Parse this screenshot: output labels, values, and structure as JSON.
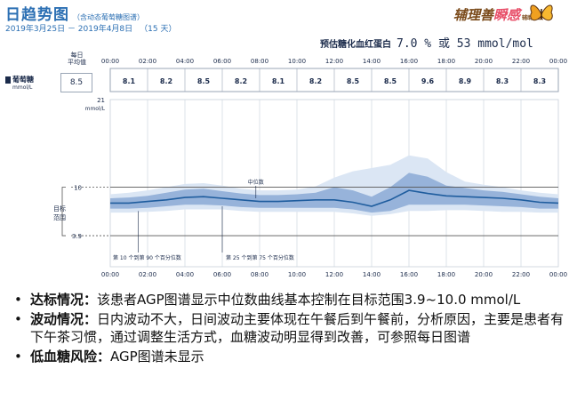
{
  "header": {
    "title": "日趋势图",
    "subtitle": "（含动态葡萄糖图谱）",
    "date_range": "2019年3月25日 － 2019年4月8日",
    "days": "（15 天）",
    "logo_text_a": "辅理善",
    "logo_text_b": "瞬感",
    "logo_small": "辅助系统",
    "hba1c_label": "预估糖化血红蛋白",
    "hba1c_value": "7.0 % 或 53 mmol/mol"
  },
  "left_panel": {
    "daily_avg_label_1": "每日",
    "daily_avg_label_2": "平均值",
    "glucose_label": "葡萄糖",
    "glucose_unit": "mmol/L",
    "glucose_avg": "8.5",
    "target_label_1": "目标",
    "target_label_2": "范围"
  },
  "chart_data": {
    "type": "area",
    "x_ticks": [
      "00:00",
      "02:00",
      "04:00",
      "06:00",
      "08:00",
      "10:00",
      "12:00",
      "14:00",
      "16:00",
      "18:00",
      "20:00",
      "22:00",
      "00:00"
    ],
    "daily_averages": [
      "8.1",
      "8.2",
      "8.5",
      "8.2",
      "8.1",
      "8.2",
      "8.5",
      "8.5",
      "9.6",
      "8.9",
      "8.3",
      "8.3"
    ],
    "y_unit_top": "21",
    "y_unit_label": "mmol/L",
    "y_ticks": [
      "21",
      "10",
      "3.9"
    ],
    "ylim": [
      0,
      21
    ],
    "target_range": [
      3.9,
      10
    ],
    "median_label": "中位数",
    "band_5_95_label": "第 10 个到第 90 个百分位数",
    "band_25_75_label": "第 25 个到第 75 个百分位数",
    "hours": [
      0,
      1,
      2,
      3,
      4,
      5,
      6,
      7,
      8,
      9,
      10,
      11,
      12,
      13,
      14,
      15,
      16,
      17,
      18,
      19,
      20,
      21,
      22,
      23,
      24
    ],
    "median": [
      8.0,
      8.0,
      8.2,
      8.4,
      8.7,
      8.8,
      8.6,
      8.4,
      8.2,
      8.2,
      8.3,
      8.4,
      8.4,
      8.1,
      7.6,
      8.4,
      9.6,
      9.2,
      8.9,
      8.8,
      8.7,
      8.6,
      8.4,
      8.1,
      8.0
    ],
    "p25": [
      7.3,
      7.3,
      7.4,
      7.6,
      7.8,
      7.8,
      7.7,
      7.5,
      7.4,
      7.4,
      7.4,
      7.4,
      7.4,
      7.2,
      6.8,
      7.0,
      7.8,
      7.8,
      7.8,
      7.8,
      7.7,
      7.6,
      7.5,
      7.3,
      7.3
    ],
    "p75": [
      8.6,
      8.7,
      8.9,
      9.3,
      9.7,
      9.8,
      9.5,
      9.2,
      9.0,
      9.0,
      9.1,
      9.3,
      10.0,
      9.6,
      8.8,
      10.0,
      11.8,
      11.3,
      10.2,
      9.9,
      9.6,
      9.4,
      9.1,
      8.8,
      8.6
    ],
    "p10": [
      6.8,
      6.8,
      6.9,
      7.0,
      7.2,
      7.2,
      7.2,
      7.0,
      6.9,
      6.9,
      6.9,
      6.9,
      6.9,
      6.7,
      6.4,
      6.6,
      7.0,
      7.0,
      7.1,
      7.1,
      7.0,
      6.9,
      6.9,
      6.8,
      6.8
    ],
    "p90": [
      9.1,
      9.3,
      9.6,
      10.0,
      10.4,
      10.5,
      10.2,
      9.8,
      9.6,
      9.6,
      9.7,
      10.1,
      11.2,
      12.0,
      12.4,
      12.8,
      14.0,
      13.6,
      11.9,
      10.7,
      10.3,
      10.0,
      9.6,
      9.3,
      9.1
    ]
  },
  "bullets": [
    {
      "key": "达标情况：",
      "text": "该患者AGP图谱显示中位数曲线基本控制在目标范围3.9~10.0 mmol/L"
    },
    {
      "key": "波动情况：",
      "text": "日内波动不大，日间波动主要体现在午餐后到午餐前，分析原因，主要是患者有下午茶习惯，通过调整生活方式，血糖波动明显得到改善，可参照每日图谱"
    },
    {
      "key": "低血糖风险：",
      "text": "AGP图谱未显示"
    }
  ],
  "colors": {
    "band_outer": "#dbe6f4",
    "band_inner": "#97b3da",
    "median_line": "#1f5d9e",
    "title_blue": "#2b6fb3"
  }
}
